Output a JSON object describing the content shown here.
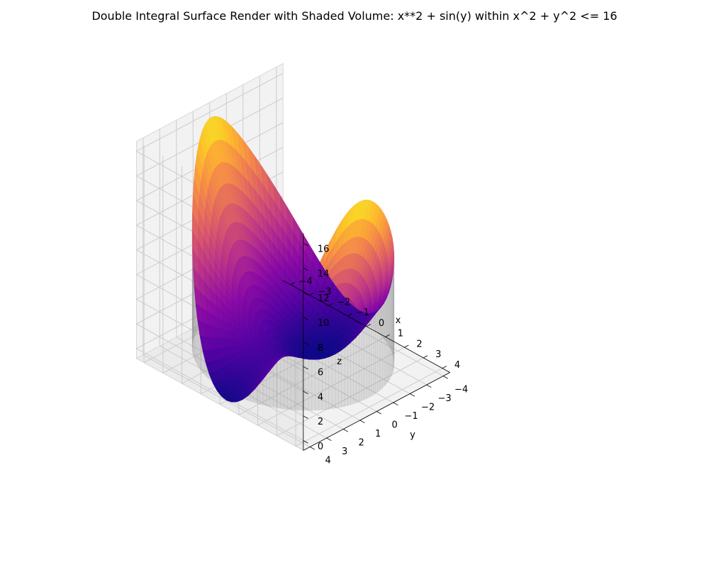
{
  "chart_data": {
    "type": "surface3d",
    "title": "Double Integral Surface Render with Shaded Volume: x**2 + sin(y) within x^2 + y^2 <= 16",
    "function": "x**2 + sin(y)",
    "region": "x^2 + y^2 <= 16",
    "xlabel": "x",
    "ylabel": "y",
    "zlabel": "z",
    "xlim": [
      -4,
      4
    ],
    "ylim": [
      -4,
      4
    ],
    "zlim": [
      0,
      16
    ],
    "x_ticks": [
      -4,
      -3,
      -2,
      -1,
      0,
      1,
      2,
      3,
      4
    ],
    "y_ticks": [
      -4,
      -3,
      -2,
      -1,
      0,
      1,
      2,
      3,
      4
    ],
    "z_ticks": [
      0,
      2,
      4,
      6,
      8,
      10,
      12,
      14,
      16
    ],
    "colormap": "plasma",
    "volume_color": "#808080",
    "grid": true
  }
}
